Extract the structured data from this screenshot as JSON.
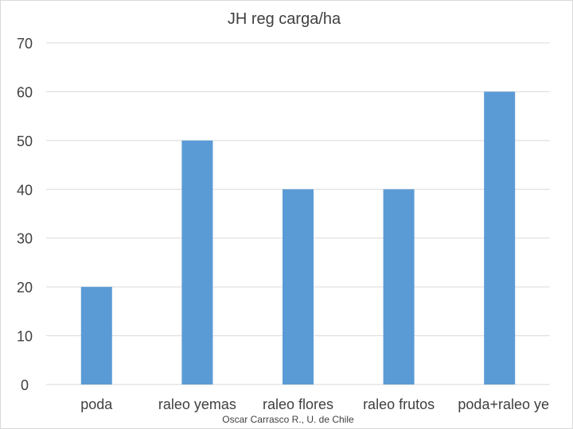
{
  "chart_data": {
    "type": "bar",
    "title": "JH reg carga/ha",
    "categories": [
      "poda",
      "raleo yemas",
      "raleo flores",
      "raleo frutos",
      "poda+raleo ye"
    ],
    "values": [
      20,
      50,
      40,
      40,
      60
    ],
    "ylim": [
      0,
      70
    ],
    "yticks": [
      "0",
      "10",
      "20",
      "30",
      "40",
      "50",
      "60",
      "70"
    ],
    "xlabel": "",
    "ylabel": "",
    "grid": true,
    "legend": "none",
    "bar_color": "#5b9bd5",
    "grid_color": "#d9d9d9"
  },
  "footer": {
    "credit": "Oscar Carrasco R., U. de Chile"
  }
}
